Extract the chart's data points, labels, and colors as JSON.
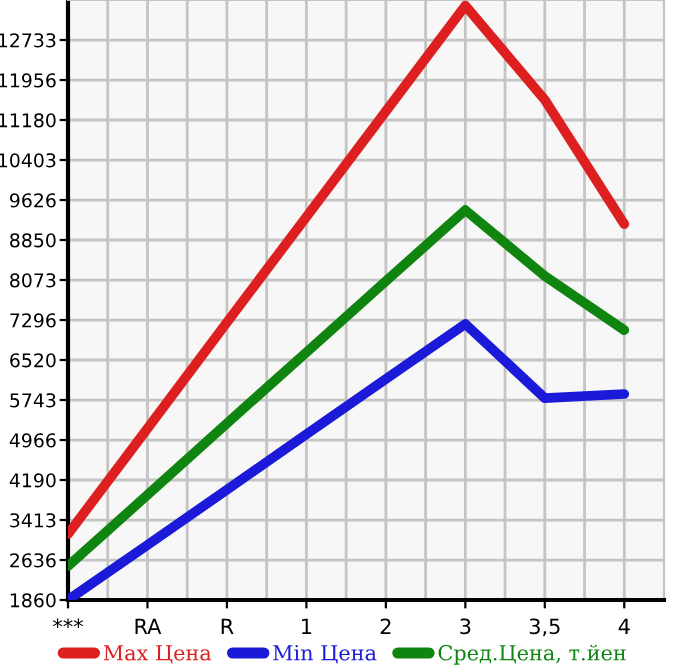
{
  "chart_data": {
    "type": "line",
    "categories": [
      "***",
      "RA",
      "R",
      "1",
      "2",
      "3",
      "3,5",
      "4"
    ],
    "series": [
      {
        "name": "Max Цена",
        "color": "#dd1f1f",
        "values": [
          3140,
          5190,
          7250,
          9300,
          11350,
          13400,
          11570,
          9160
        ]
      },
      {
        "name": "Min Цена",
        "color": "#1a1ad8",
        "values": [
          1860,
          2930,
          4000,
          5080,
          6150,
          7220,
          5780,
          5860
        ]
      },
      {
        "name": "Сред.Цена, т.йен",
        "color": "#0f850f",
        "values": [
          2520,
          3900,
          5290,
          6670,
          8050,
          9430,
          8150,
          7100
        ]
      }
    ],
    "ylim": [
      1860,
      13510
    ],
    "yticks": [
      1860,
      2636,
      3413,
      4190,
      4966,
      5743,
      6520,
      7296,
      8073,
      8850,
      9626,
      10403,
      11180,
      11956,
      12733
    ],
    "grid": true,
    "legend": "bottom",
    "marker": "none",
    "line_style": "solid"
  }
}
